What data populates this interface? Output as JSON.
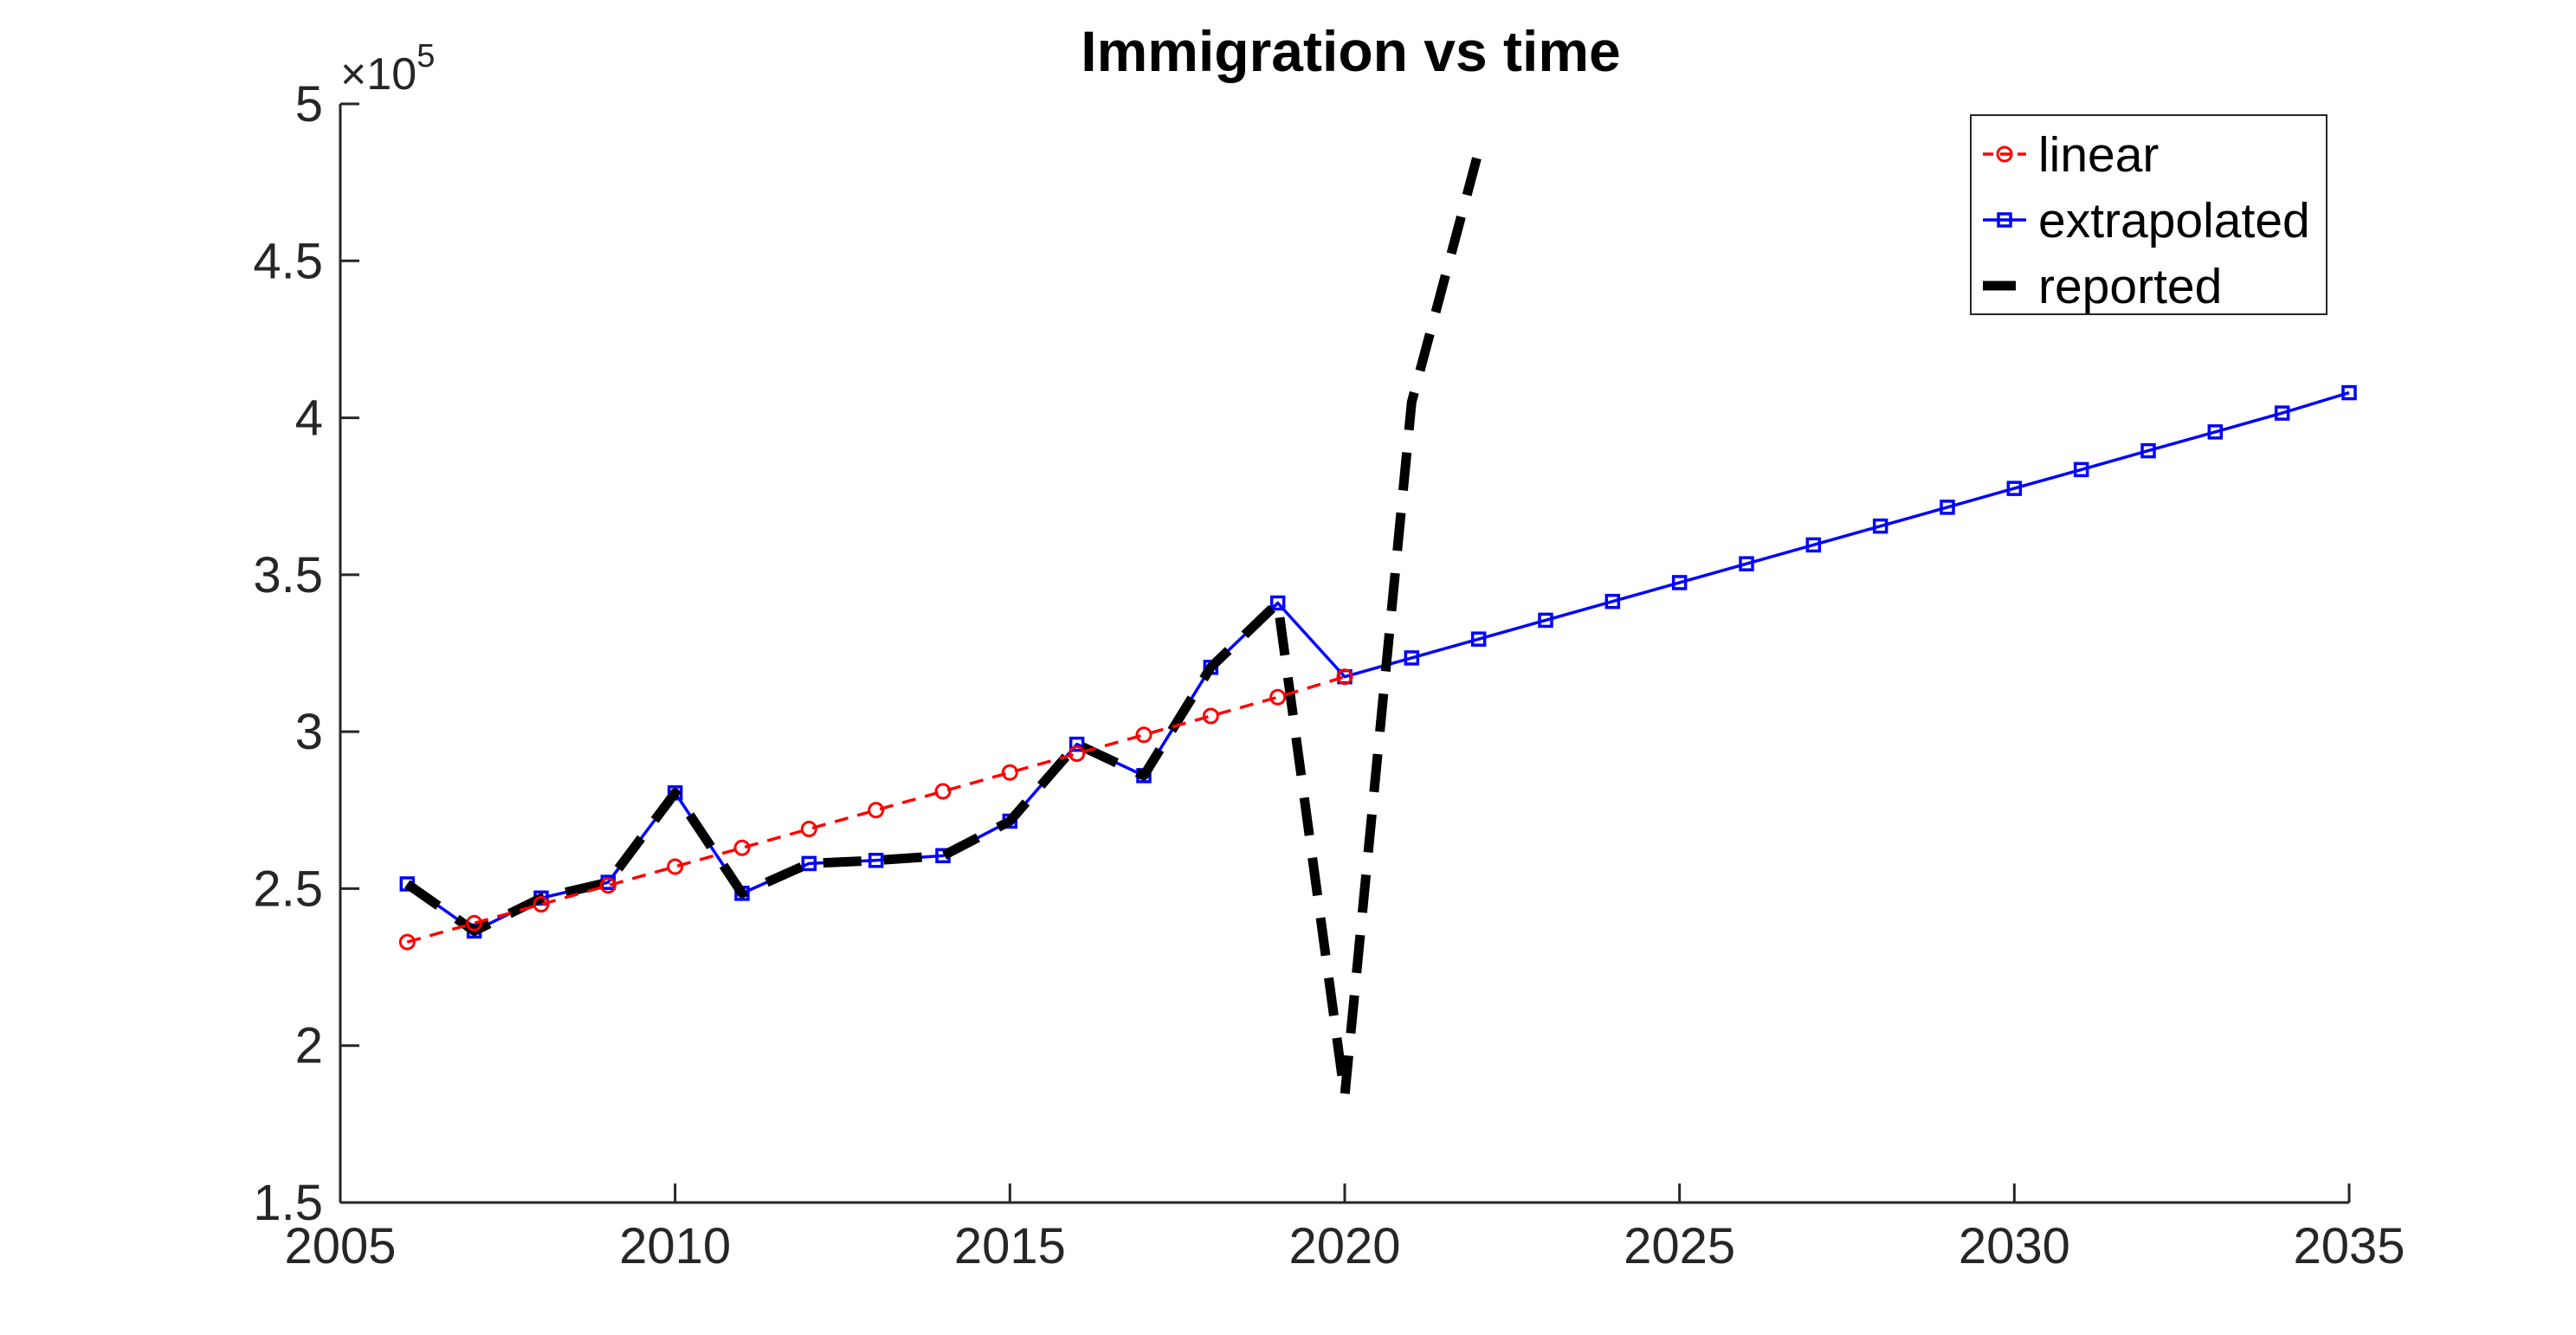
{
  "chart_data": {
    "type": "line",
    "title": "Immigration vs time",
    "xlabel": "",
    "ylabel": "",
    "xlim": [
      2005,
      2035
    ],
    "ylim": [
      150000,
      500000
    ],
    "y_exponent_label": "×10",
    "y_exponent": "5",
    "x_ticks": [
      {
        "value": 2005,
        "label": "2005"
      },
      {
        "value": 2010,
        "label": "2010"
      },
      {
        "value": 2015,
        "label": "2015"
      },
      {
        "value": 2020,
        "label": "2020"
      },
      {
        "value": 2025,
        "label": "2025"
      },
      {
        "value": 2030,
        "label": "2030"
      },
      {
        "value": 2035,
        "label": "2035"
      }
    ],
    "y_ticks": [
      {
        "value": 150000,
        "label": "1.5"
      },
      {
        "value": 200000,
        "label": "2"
      },
      {
        "value": 250000,
        "label": "2.5"
      },
      {
        "value": 300000,
        "label": "3"
      },
      {
        "value": 350000,
        "label": "3.5"
      },
      {
        "value": 400000,
        "label": "4"
      },
      {
        "value": 450000,
        "label": "4.5"
      },
      {
        "value": 500000,
        "label": "5"
      }
    ],
    "grid": false,
    "legend_position": "top-right",
    "series": [
      {
        "name": "linear",
        "color": "#ff0000",
        "line_style": "dashed",
        "marker": "circle",
        "x": [
          2006,
          2007,
          2008,
          2009,
          2010,
          2011,
          2012,
          2013,
          2014,
          2015,
          2016,
          2017,
          2018,
          2019,
          2020
        ],
        "y": [
          233000,
          239000,
          245000,
          251000,
          257000,
          263000,
          269000,
          275000,
          281000,
          287000,
          293000,
          299000,
          305000,
          311000,
          317500
        ]
      },
      {
        "name": "extrapolated",
        "color": "#0000ff",
        "line_style": "solid",
        "marker": "square",
        "x": [
          2006,
          2007,
          2008,
          2009,
          2010,
          2011,
          2012,
          2013,
          2014,
          2015,
          2016,
          2017,
          2018,
          2019,
          2020,
          2021,
          2022,
          2023,
          2024,
          2025,
          2026,
          2027,
          2028,
          2029,
          2030,
          2031,
          2032,
          2033,
          2034,
          2035
        ],
        "y": [
          251500,
          236500,
          247000,
          252000,
          280500,
          248500,
          258000,
          259000,
          260500,
          271500,
          296000,
          286000,
          320500,
          341000,
          317500,
          323500,
          329500,
          335500,
          341500,
          347500,
          353500,
          359500,
          365500,
          371500,
          377500,
          383500,
          389500,
          395500,
          401500,
          408000
        ]
      },
      {
        "name": "reported",
        "color": "#000000",
        "line_style": "dashed",
        "marker": "none",
        "x": [
          2006,
          2007,
          2008,
          2009,
          2010,
          2011,
          2012,
          2013,
          2014,
          2015,
          2016,
          2017,
          2018,
          2019,
          2020,
          2021,
          2022
        ],
        "y": [
          251500,
          236500,
          247000,
          252000,
          280500,
          248500,
          258000,
          259000,
          260500,
          271500,
          296000,
          286000,
          320500,
          341000,
          184000,
          405000,
          485000
        ]
      }
    ]
  }
}
